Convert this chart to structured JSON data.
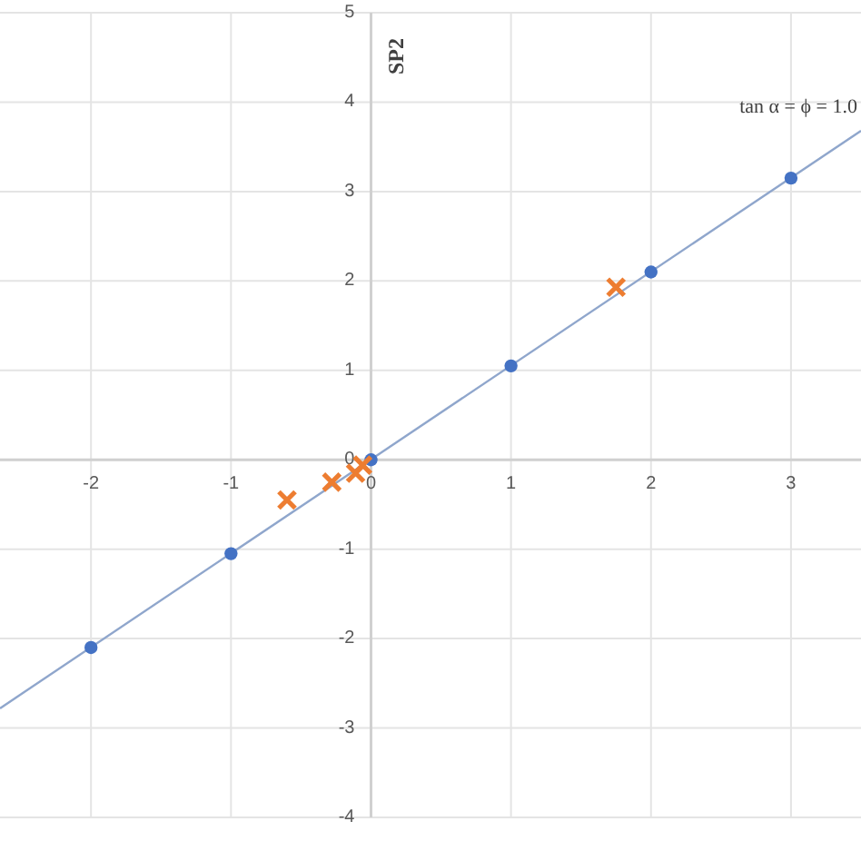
{
  "chart_data": {
    "type": "scatter",
    "ylabel": "SP2",
    "annotations": [
      "tan α = ϕ = 1.0"
    ],
    "xlim": [
      -2.65,
      3.5
    ],
    "ylim": [
      -4,
      5
    ],
    "xticks": [
      -2,
      -1,
      0,
      1,
      2,
      3
    ],
    "yticks": [
      -4,
      -3,
      -2,
      -1,
      0,
      1,
      2,
      3,
      4,
      5
    ],
    "grid": true,
    "series": [
      {
        "type": "line",
        "color": "#8fa6cc",
        "x": [
          -2.65,
          3.5
        ],
        "values": [
          -2.78,
          3.68
        ],
        "marker": "none"
      },
      {
        "color": "#4472c4",
        "x": [
          -2,
          -1,
          0,
          1,
          2,
          3
        ],
        "values": [
          -2.1,
          -1.05,
          0,
          1.05,
          2.1,
          3.15
        ],
        "marker": "circle"
      },
      {
        "color": "#ed7d31",
        "x": [
          1.75,
          -0.6,
          -0.28,
          -0.11,
          -0.06
        ],
        "values": [
          1.93,
          -0.45,
          -0.25,
          -0.15,
          -0.06
        ],
        "marker": "cross"
      }
    ]
  }
}
